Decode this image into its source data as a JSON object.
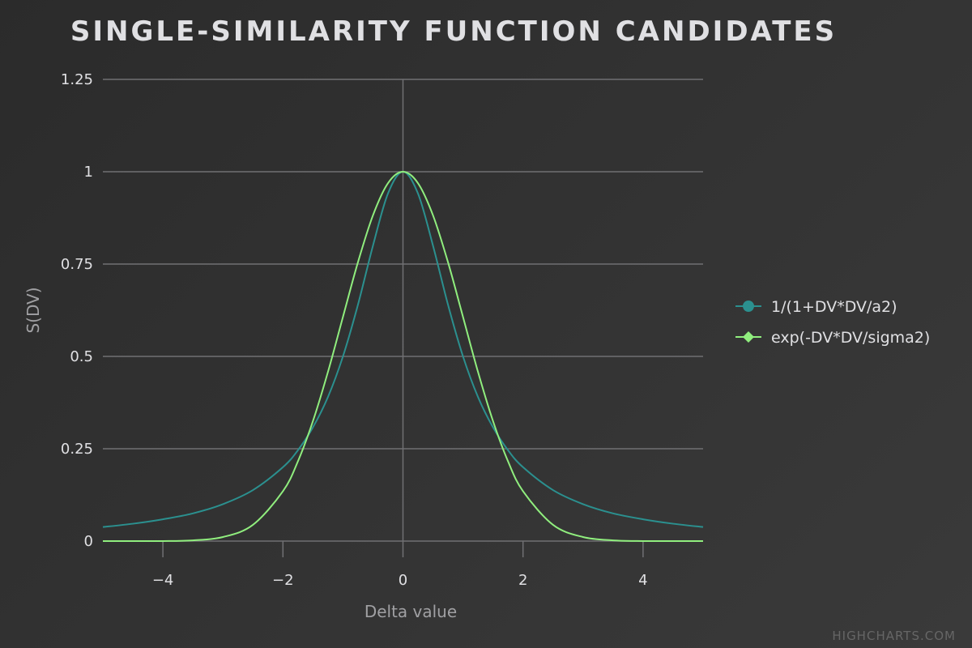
{
  "chart_data": {
    "type": "line",
    "title": "SINGLE-SIMILARITY FUNCTION CANDIDATES",
    "xlabel": "Delta value",
    "ylabel": "S(DV)",
    "xlim": [
      -5,
      5
    ],
    "ylim": [
      0,
      1.25
    ],
    "x_ticks": [
      -4,
      -2,
      0,
      2,
      4
    ],
    "x_tick_labels": [
      "−4",
      "−2",
      "0",
      "2",
      "4"
    ],
    "y_ticks": [
      0,
      0.25,
      0.5,
      0.75,
      1,
      1.25
    ],
    "y_tick_labels": [
      "0",
      "0.25",
      "0.5",
      "0.75",
      "1",
      "1.25"
    ],
    "grid": true,
    "legend_position": "right",
    "x": [
      -5,
      -4.5,
      -4,
      -3.5,
      -3,
      -2.5,
      -2,
      -1.75,
      -1.5,
      -1.25,
      -1,
      -0.75,
      -0.5,
      -0.25,
      0,
      0.25,
      0.5,
      0.75,
      1,
      1.25,
      1.5,
      1.75,
      2,
      2.5,
      3,
      3.5,
      4,
      4.5,
      5
    ],
    "series": [
      {
        "name": "1/(1+DV*DV/a2)",
        "color": "#2b908f",
        "marker": "circle",
        "values": [
          0.038,
          0.047,
          0.059,
          0.075,
          0.1,
          0.138,
          0.2,
          0.246,
          0.308,
          0.39,
          0.5,
          0.64,
          0.8,
          0.941,
          1,
          0.941,
          0.8,
          0.64,
          0.5,
          0.39,
          0.308,
          0.246,
          0.2,
          0.138,
          0.1,
          0.075,
          0.059,
          0.047,
          0.038
        ]
      },
      {
        "name": "exp(-DV*DV/sigma2)",
        "color": "#90ee7e",
        "marker": "diamond",
        "values": [
          0.0,
          0.0,
          0.0,
          0.002,
          0.011,
          0.044,
          0.135,
          0.216,
          0.325,
          0.458,
          0.607,
          0.755,
          0.882,
          0.969,
          1,
          0.969,
          0.882,
          0.755,
          0.607,
          0.458,
          0.325,
          0.216,
          0.135,
          0.044,
          0.011,
          0.002,
          0.0,
          0.0,
          0.0
        ]
      }
    ]
  },
  "credits": "HIGHCHARTS.COM",
  "colors": {
    "gridline": "#707073",
    "axis_line": "#707073",
    "tick_label": "#e0e0e3",
    "axis_title": "#a0a0a3"
  }
}
